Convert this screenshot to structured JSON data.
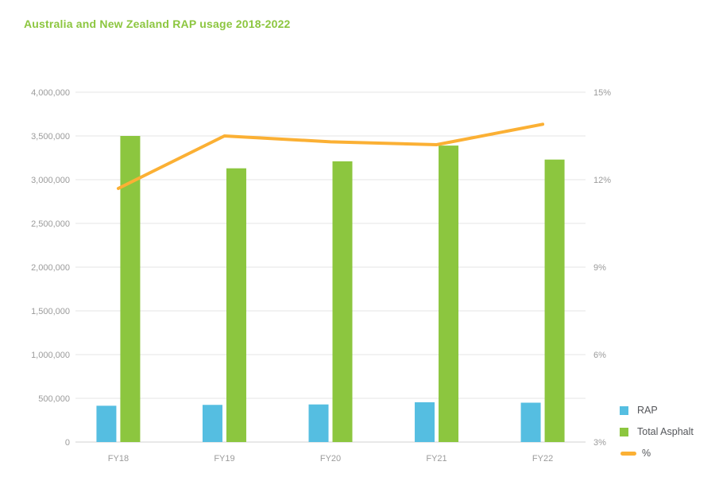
{
  "header": {
    "title": "Australia and New Zealand RAP usage 2018-2022",
    "title_color": "#8CC63F"
  },
  "chart_data": {
    "type": "bar",
    "title": "Australia and New Zealand RAP usage 2018-2022",
    "categories": [
      "FY18",
      "FY19",
      "FY20",
      "FY21",
      "FY22"
    ],
    "series": [
      {
        "name": "RAP",
        "type": "bar",
        "axis": "left",
        "color": "#55BEE1",
        "values": [
          415000,
          425000,
          430000,
          455000,
          450000
        ]
      },
      {
        "name": "Total Asphalt",
        "type": "bar",
        "axis": "left",
        "color": "#8CC63F",
        "values": [
          3500000,
          3130000,
          3210000,
          3390000,
          3230000
        ]
      },
      {
        "name": "%",
        "type": "line",
        "axis": "right",
        "color": "#FBB034",
        "values": [
          11.7,
          13.5,
          13.3,
          13.2,
          13.9
        ]
      }
    ],
    "left_axis": {
      "min": 0,
      "max": 4000000,
      "tick_step": 500000,
      "tick_labels": [
        "0",
        "500,000",
        "1,000,000",
        "1,500,000",
        "2,000,000",
        "2,500,000",
        "3,000,000",
        "3,500,000",
        "4,000,000"
      ]
    },
    "right_axis": {
      "min": 3,
      "max": 15,
      "tick_step": 3,
      "tick_labels": [
        "3%",
        "6%",
        "9%",
        "12%",
        "15%"
      ]
    },
    "grid": true,
    "legend_position": "bottom-right",
    "legend_items": [
      "RAP",
      "Total Asphalt",
      "%"
    ],
    "axis_text_color": "#9B9B9B",
    "legend_text_color": "#54565A",
    "gridline_color": "#E4E4E4",
    "baseline_color": "#D2D2D2"
  }
}
